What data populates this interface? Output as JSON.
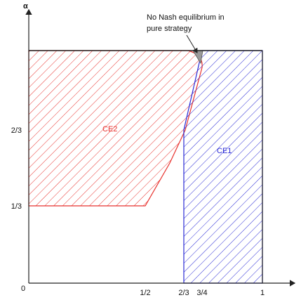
{
  "axes": {
    "y_label": "α",
    "origin_label": "0",
    "x_ticks": [
      "1/2",
      "2/3",
      "3/4",
      "1"
    ],
    "y_ticks": [
      "2/3",
      "1/3"
    ]
  },
  "regions": {
    "ce2": {
      "label": "CE2",
      "color": "#e8322e"
    },
    "ce1": {
      "label": "CE1",
      "color": "#2b2bd6"
    },
    "no_nash": {
      "color": "#9a9a9a"
    }
  },
  "annotation": {
    "line1": "No Nash equilibrium in",
    "line2": "pure strategy"
  }
}
